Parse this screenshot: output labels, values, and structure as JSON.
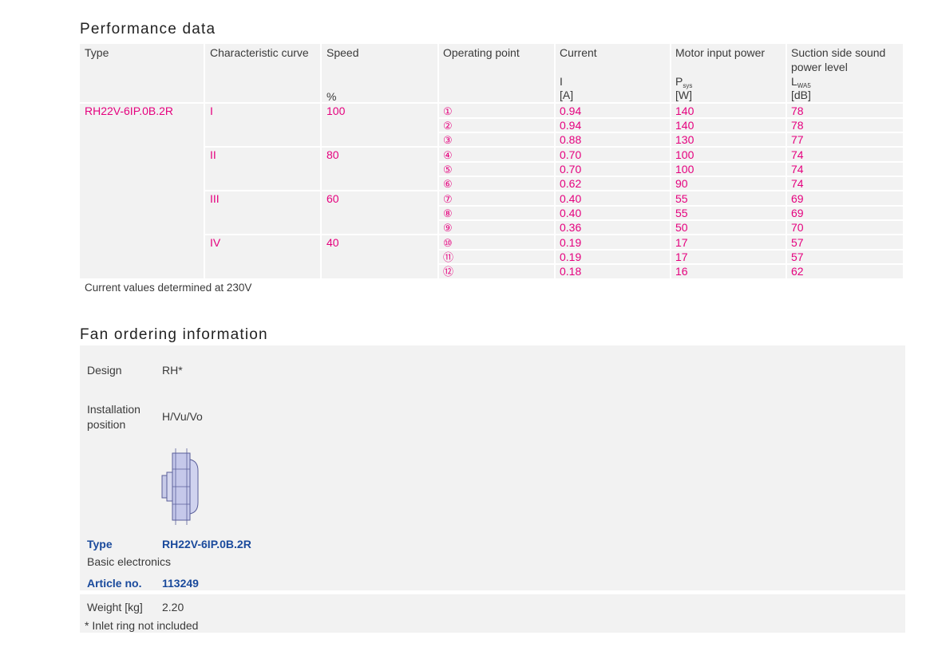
{
  "performance": {
    "title": "Performance data",
    "headers": {
      "type": "Type",
      "curve": "Characteristic curve",
      "speed": "Speed",
      "op": "Operating point",
      "current": "Current",
      "power": "Motor input power",
      "sound_l1": "Suction side sound",
      "sound_l2": "power level"
    },
    "units": {
      "speed": "%",
      "current_sym": "I",
      "current_unit": "[A]",
      "power_sym": "P",
      "power_sub": "sys",
      "power_unit": "[W]",
      "sound_sym": "L",
      "sound_sub": "WA5",
      "sound_unit": "[dB]"
    },
    "type_value": "RH22V-6IP.0B.2R",
    "groups": [
      {
        "curve": "I",
        "speed": "100"
      },
      {
        "curve": "II",
        "speed": "80"
      },
      {
        "curve": "III",
        "speed": "60"
      },
      {
        "curve": "IV",
        "speed": "40"
      }
    ],
    "rows": [
      {
        "op": "①",
        "current": "0.94",
        "power": "140",
        "sound": "78"
      },
      {
        "op": "②",
        "current": "0.94",
        "power": "140",
        "sound": "78"
      },
      {
        "op": "③",
        "current": "0.88",
        "power": "130",
        "sound": "77"
      },
      {
        "op": "④",
        "current": "0.70",
        "power": "100",
        "sound": "74"
      },
      {
        "op": "⑤",
        "current": "0.70",
        "power": "100",
        "sound": "74"
      },
      {
        "op": "⑥",
        "current": "0.62",
        "power": "90",
        "sound": "74"
      },
      {
        "op": "⑦",
        "current": "0.40",
        "power": "55",
        "sound": "69"
      },
      {
        "op": "⑧",
        "current": "0.40",
        "power": "55",
        "sound": "69"
      },
      {
        "op": "⑨",
        "current": "0.36",
        "power": "50",
        "sound": "70"
      },
      {
        "op": "⑩",
        "current": "0.19",
        "power": "17",
        "sound": "57"
      },
      {
        "op": "⑪",
        "current": "0.19",
        "power": "17",
        "sound": "57"
      },
      {
        "op": "⑫",
        "current": "0.18",
        "power": "16",
        "sound": "62"
      }
    ],
    "note": "Current values determined at 230V"
  },
  "fan": {
    "title": "Fan ordering information",
    "design_label": "Design",
    "design_value": "RH*",
    "install_label_1": "Installation",
    "install_label_2": "position",
    "install_value": "H/Vu/Vo",
    "type_label": "Type",
    "type_value": "RH22V-6IP.0B.2R",
    "electronics": "Basic electronics",
    "article_label": "Article no.",
    "article_value": "113249",
    "weight_label": "Weight [kg]",
    "weight_value": "2.20",
    "footnote": "* Inlet ring not included"
  },
  "colors": {
    "accent": "#e5007e",
    "blue": "#1a4a9c",
    "panel": "#f2f2f2"
  }
}
